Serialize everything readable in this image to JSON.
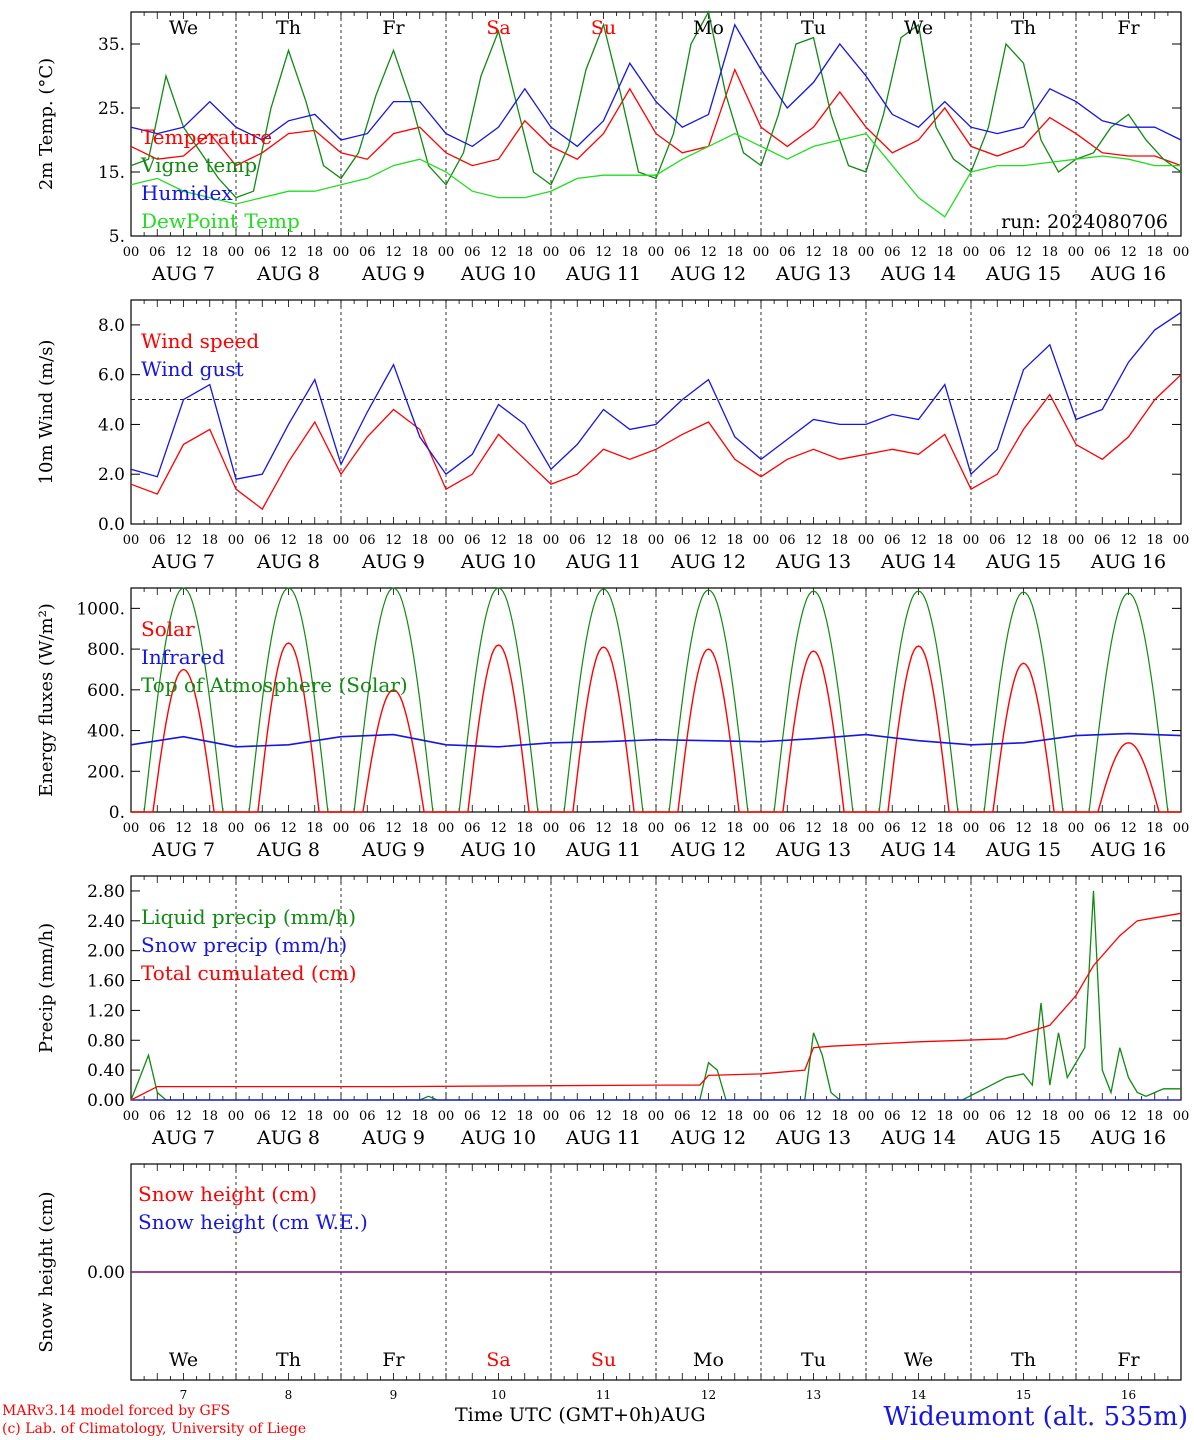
{
  "run_label": "run: 2024080706",
  "footer": {
    "credit1": "MARv3.14 model forced by GFS",
    "credit2": "(c) Lab. of Climatology, University of Liege",
    "time_axis": "Time UTC (GMT+0h)AUG",
    "station": "Wideumont (alt. 535m)"
  },
  "colors": {
    "red": "#ff0000",
    "green": "#118a11",
    "blue": "#1515e6",
    "light_green": "#22dd22",
    "purple": "#800080"
  },
  "days": {
    "weekdays": [
      "We",
      "Th",
      "Fr",
      "Sa",
      "Su",
      "Mo",
      "Tu",
      "We",
      "Th",
      "Fr"
    ],
    "weekend": [
      false,
      false,
      false,
      true,
      true,
      false,
      false,
      false,
      false,
      false
    ],
    "dates": [
      "AUG  7",
      "AUG  8",
      "AUG  9",
      "AUG 10",
      "AUG 11",
      "AUG 12",
      "AUG 13",
      "AUG 14",
      "AUG 15",
      "AUG 16"
    ],
    "day_numbers": [
      "7",
      "8",
      "9",
      "10",
      "11",
      "12",
      "13",
      "14",
      "15",
      "16"
    ],
    "hour_ticks": [
      "00",
      "06",
      "12",
      "18"
    ],
    "final_tick": "00"
  },
  "chart_data": [
    {
      "type": "line",
      "ylabel": "2m Temp. (°C)",
      "yticks": [
        "35.",
        "25.",
        "15.",
        "5."
      ],
      "ylim": [
        5,
        40
      ],
      "grid": false,
      "series": [
        {
          "name": "Temperature",
          "color": "#ff0000",
          "key": "t2m",
          "x": [
            0,
            6,
            12,
            18,
            24,
            30,
            36,
            42,
            48,
            54,
            60,
            66,
            72,
            78,
            84,
            90,
            96,
            102,
            108,
            114,
            120,
            126,
            132,
            138,
            144,
            150,
            156,
            162,
            168,
            174,
            180,
            186,
            192,
            198,
            204,
            210,
            216,
            222,
            228,
            234,
            240
          ],
          "values": [
            19,
            17,
            17.5,
            21,
            16,
            18,
            21,
            21.5,
            18,
            17,
            21,
            22,
            18,
            16,
            17,
            23,
            19,
            17,
            21,
            28,
            21,
            18,
            19,
            31,
            22,
            19,
            22,
            27.5,
            22,
            18,
            20,
            25,
            19,
            17.5,
            19,
            23.5,
            21,
            18,
            17.5,
            17.5,
            16
          ]
        },
        {
          "name": "Vigne temp",
          "color": "#118a11",
          "key": "vigne",
          "x": [
            0,
            4,
            8,
            12,
            16,
            20,
            24,
            28,
            32,
            36,
            40,
            44,
            48,
            52,
            56,
            60,
            64,
            68,
            72,
            76,
            80,
            84,
            88,
            92,
            96,
            100,
            104,
            108,
            112,
            116,
            120,
            124,
            128,
            132,
            136,
            140,
            144,
            148,
            152,
            156,
            160,
            164,
            168,
            172,
            176,
            180,
            184,
            188,
            192,
            196,
            200,
            204,
            208,
            212,
            216,
            220,
            224,
            228,
            232,
            236,
            240
          ],
          "values": [
            16,
            17,
            30,
            22,
            18,
            14,
            11,
            12,
            25,
            34,
            26,
            16,
            14,
            18,
            27,
            34,
            26,
            16,
            13,
            18,
            30,
            37,
            26,
            15,
            13,
            19,
            31,
            38,
            27,
            15,
            14,
            21,
            35,
            40,
            27,
            18,
            16,
            24,
            35,
            36,
            24,
            16,
            15,
            24,
            36,
            38,
            22,
            17,
            15,
            22,
            35,
            32,
            20,
            15,
            17,
            18,
            22,
            24,
            20,
            17,
            15
          ]
        },
        {
          "name": "Humidex",
          "color": "#1515e6",
          "key": "humidex",
          "x": [
            0,
            6,
            12,
            18,
            24,
            30,
            36,
            42,
            48,
            54,
            60,
            66,
            72,
            78,
            84,
            90,
            96,
            102,
            108,
            114,
            120,
            126,
            132,
            138,
            144,
            150,
            156,
            162,
            168,
            174,
            180,
            186,
            192,
            198,
            204,
            210,
            216,
            222,
            228,
            234,
            240
          ],
          "values": [
            22,
            21,
            22,
            26,
            22,
            20,
            23,
            24,
            20,
            21,
            26,
            26,
            21,
            19,
            22,
            28,
            22,
            19,
            23,
            32,
            26,
            22,
            24,
            38,
            31,
            25,
            29,
            35,
            30,
            24,
            22,
            26,
            22,
            21,
            22,
            28,
            26,
            23,
            22,
            22,
            20
          ]
        },
        {
          "name": "DewPoint Temp",
          "color": "#22dd22",
          "key": "dew",
          "x": [
            0,
            6,
            12,
            18,
            24,
            30,
            36,
            42,
            48,
            54,
            60,
            66,
            72,
            78,
            84,
            90,
            96,
            102,
            108,
            114,
            120,
            126,
            132,
            138,
            144,
            150,
            156,
            162,
            168,
            174,
            180,
            186,
            192,
            198,
            204,
            210,
            216,
            222,
            228,
            234,
            240
          ],
          "values": [
            13,
            14,
            12,
            11,
            10,
            11,
            12,
            12,
            13,
            14,
            16,
            17,
            15,
            12,
            11,
            11,
            12,
            14,
            14.5,
            14.5,
            14.5,
            17,
            19,
            21,
            19,
            17,
            19,
            20,
            21,
            16,
            11,
            8,
            15,
            16,
            16,
            16.5,
            17,
            17.5,
            17,
            16,
            16
          ]
        }
      ]
    },
    {
      "type": "line",
      "ylabel": "10m Wind (m/s)",
      "yticks": [
        "8.0",
        "6.0",
        "4.0",
        "2.0",
        "0.0"
      ],
      "ylim": [
        0,
        9
      ],
      "reference_line": 5,
      "series": [
        {
          "name": "Wind speed",
          "color": "#ff0000",
          "key": "wind",
          "x": [
            0,
            6,
            12,
            18,
            24,
            30,
            36,
            42,
            48,
            54,
            60,
            66,
            72,
            78,
            84,
            90,
            96,
            102,
            108,
            114,
            120,
            126,
            132,
            138,
            144,
            150,
            156,
            162,
            168,
            174,
            180,
            186,
            192,
            198,
            204,
            210,
            216,
            222,
            228,
            234,
            240
          ],
          "values": [
            1.6,
            1.2,
            3.2,
            3.8,
            1.4,
            0.6,
            2.5,
            4.1,
            2.0,
            3.5,
            4.6,
            3.8,
            1.4,
            2.0,
            3.6,
            2.6,
            1.6,
            2.0,
            3.0,
            2.6,
            3.0,
            3.6,
            4.1,
            2.6,
            1.9,
            2.6,
            3.0,
            2.6,
            2.8,
            3.0,
            2.8,
            3.6,
            1.4,
            2.0,
            3.8,
            5.2,
            3.2,
            2.6,
            3.5,
            5.0,
            6.0
          ]
        },
        {
          "name": "Wind gust",
          "color": "#1515e6",
          "key": "gust",
          "x": [
            0,
            6,
            12,
            18,
            24,
            30,
            36,
            42,
            48,
            54,
            60,
            66,
            72,
            78,
            84,
            90,
            96,
            102,
            108,
            114,
            120,
            126,
            132,
            138,
            144,
            150,
            156,
            162,
            168,
            174,
            180,
            186,
            192,
            198,
            204,
            210,
            216,
            222,
            228,
            234,
            240
          ],
          "values": [
            2.2,
            1.9,
            5.0,
            5.6,
            1.8,
            2.0,
            4.0,
            5.8,
            2.4,
            4.5,
            6.4,
            3.5,
            2.0,
            2.8,
            4.8,
            4.0,
            2.2,
            3.2,
            4.6,
            3.8,
            4.0,
            5.0,
            5.8,
            3.5,
            2.6,
            3.4,
            4.2,
            4.0,
            4.0,
            4.4,
            4.2,
            5.6,
            2.0,
            3.0,
            6.2,
            7.2,
            4.2,
            4.6,
            6.5,
            7.8,
            8.5
          ]
        }
      ]
    },
    {
      "type": "line",
      "ylabel": "Energy fluxes (W/m²)",
      "yticks": [
        "1000.",
        "800.",
        "600.",
        "400.",
        "200.",
        "0."
      ],
      "ylim": [
        0,
        1100
      ],
      "series": [
        {
          "name": "Solar",
          "color": "#ff0000",
          "key": "solar_peaks",
          "peaks": [
            700,
            830,
            600,
            820,
            810,
            800,
            790,
            815,
            730,
            340
          ]
        },
        {
          "name": "Infrared",
          "color": "#1515e6",
          "key": "ir",
          "x": [
            0,
            12,
            24,
            36,
            48,
            60,
            72,
            84,
            96,
            108,
            120,
            132,
            144,
            156,
            168,
            180,
            192,
            204,
            216,
            228,
            240
          ],
          "values": [
            330,
            370,
            320,
            330,
            370,
            380,
            330,
            320,
            340,
            345,
            355,
            350,
            345,
            360,
            380,
            350,
            330,
            340,
            375,
            385,
            375
          ]
        },
        {
          "name": "Top of Atmosphere (Solar)",
          "color": "#118a11",
          "key": "toa_peak",
          "peaks": [
            1100,
            1100,
            1100,
            1100,
            1095,
            1090,
            1085,
            1085,
            1080,
            1075
          ]
        }
      ]
    },
    {
      "type": "line",
      "ylabel": "Precip (mm/h)",
      "yticks": [
        "2.80",
        "2.40",
        "2.00",
        "1.60",
        "1.20",
        "0.80",
        "0.40",
        "0.00"
      ],
      "ylim": [
        0,
        3
      ],
      "series": [
        {
          "name": "Liquid precip (mm/h)",
          "color": "#118a11",
          "key": "liquid",
          "x": [
            0,
            2,
            4,
            6,
            8,
            10,
            12,
            66,
            68,
            70,
            130,
            132,
            134,
            136,
            138,
            140,
            154,
            156,
            158,
            160,
            162,
            190,
            200,
            204,
            206,
            208,
            210,
            212,
            214,
            216,
            218,
            220,
            222,
            224,
            226,
            228,
            230,
            232,
            234,
            236,
            238,
            240
          ],
          "values": [
            0,
            0.3,
            0.6,
            0.1,
            0,
            0,
            0,
            0,
            0.05,
            0,
            0,
            0.5,
            0.4,
            0,
            0,
            0,
            0,
            0.9,
            0.6,
            0.1,
            0,
            0,
            0.3,
            0.35,
            0.2,
            1.3,
            0.2,
            0.9,
            0.3,
            0.5,
            0.7,
            2.8,
            0.4,
            0.1,
            0.7,
            0.3,
            0.1,
            0.05,
            0.1,
            0.15,
            0.15,
            0.15
          ]
        },
        {
          "name": "Snow precip (mm/h)",
          "color": "#1515e6",
          "key": "snow",
          "x": [
            0,
            240
          ],
          "values": [
            0,
            0
          ]
        },
        {
          "name": "Total cumulated (cm)",
          "color": "#ff0000",
          "key": "cum",
          "x": [
            0,
            6,
            60,
            120,
            130,
            132,
            144,
            154,
            156,
            160,
            180,
            200,
            210,
            216,
            220,
            226,
            230,
            240
          ],
          "values": [
            0,
            0.18,
            0.18,
            0.2,
            0.2,
            0.33,
            0.35,
            0.4,
            0.7,
            0.72,
            0.78,
            0.82,
            1.0,
            1.4,
            1.8,
            2.2,
            2.4,
            2.5
          ]
        }
      ]
    },
    {
      "type": "line",
      "ylabel": "Snow height (cm)",
      "yticks": [
        "0.00"
      ],
      "ylim": [
        -1,
        1
      ],
      "series": [
        {
          "name": "Snow height (cm)",
          "color": "#ff0000",
          "key": "sh",
          "x": [
            0,
            240
          ],
          "values": [
            0,
            0
          ]
        },
        {
          "name": "Snow height (cm W.E.)",
          "color": "#1515e6",
          "key": "shwe",
          "x": [
            0,
            240
          ],
          "values": [
            0,
            0
          ]
        }
      ]
    }
  ]
}
